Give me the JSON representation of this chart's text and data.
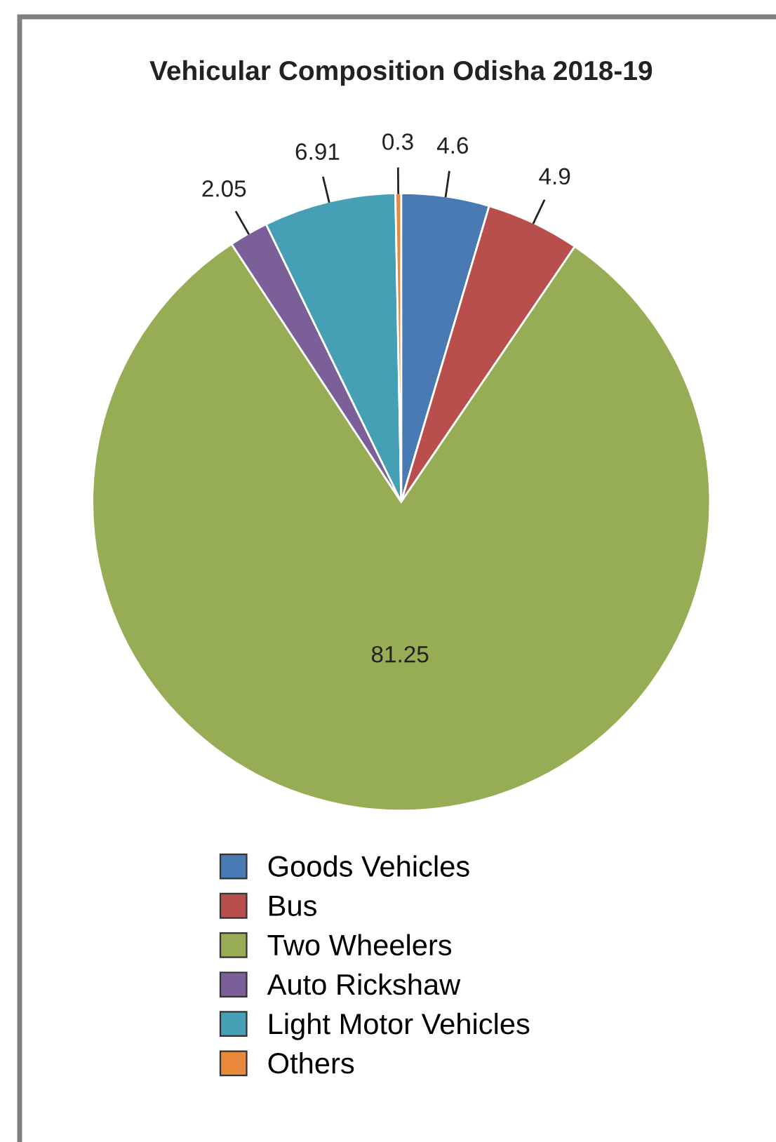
{
  "chart_data": {
    "type": "pie",
    "title": "Vehicular Composition Odisha 2018-19",
    "categories": [
      "Goods Vehicles",
      "Bus",
      "Two Wheelers",
      "Auto Rickshaw",
      "Light Motor Vehicles",
      "Others"
    ],
    "values": [
      4.6,
      4.9,
      81.25,
      2.05,
      6.91,
      0.3
    ],
    "colors": [
      "#4a7ab4",
      "#b94f4d",
      "#97ad55",
      "#7a5f99",
      "#45a0b5",
      "#e8893b"
    ],
    "data_labels": true,
    "legend": "bottom"
  }
}
